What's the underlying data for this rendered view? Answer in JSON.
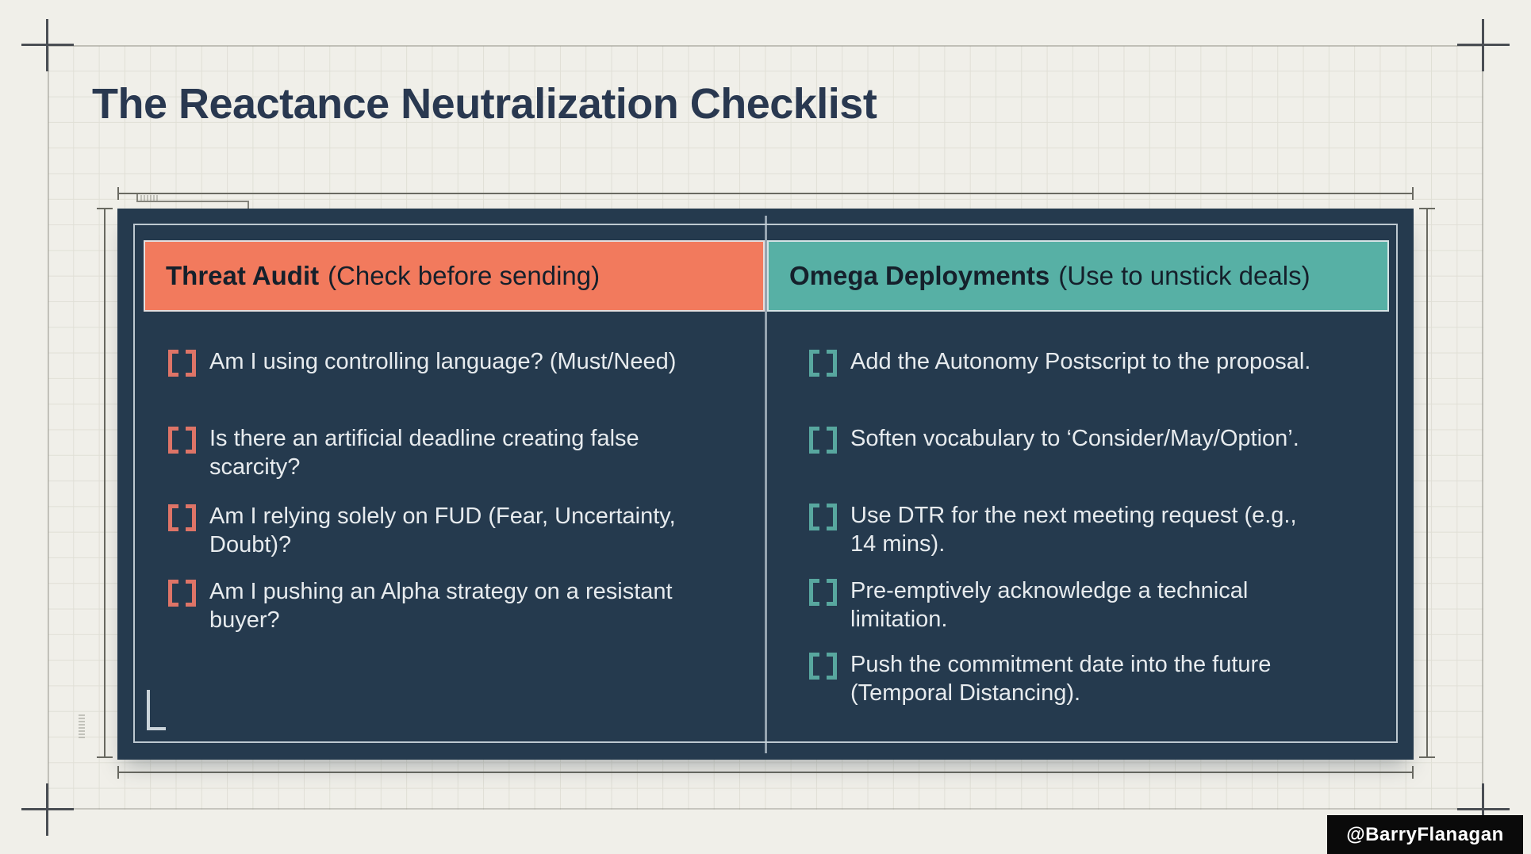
{
  "title": "The Reactance Neutralization Checklist",
  "watermark": "@BarryFlanagan",
  "columns": [
    {
      "header": {
        "bold": "Threat Audit",
        "rest": "(Check before sending)"
      },
      "items": [
        {
          "lines": [
            "Am I using controlling language? (Must/Need)"
          ]
        },
        {
          "lines": [
            "Is there an artificial deadline creating false",
            "scarcity?"
          ]
        },
        {
          "lines": [
            "Am I relying solely on FUD (Fear, Uncertainty,",
            "Doubt)?"
          ]
        },
        {
          "lines": [
            "Am I pushing an Alpha strategy on a resistant",
            "buyer?"
          ]
        }
      ]
    },
    {
      "header": {
        "bold": "Omega Deployments",
        "rest": "(Use to unstick deals)"
      },
      "items": [
        {
          "lines": [
            "Add the Autonomy Postscript to the proposal."
          ]
        },
        {
          "lines": [
            "Soften vocabulary to ‘Consider/May/Option’."
          ]
        },
        {
          "lines": [
            "Use DTR for the next meeting request (e.g.,",
            "14 mins)."
          ]
        },
        {
          "lines": [
            "Pre-emptively acknowledge a technical",
            "limitation."
          ]
        },
        {
          "lines": [
            "Push the commitment date into the future",
            "(Temporal Distancing)."
          ]
        }
      ]
    }
  ],
  "colors": {
    "pageBg": "#F0EFE9",
    "grid": "#DEDDD3",
    "panel": "#253A4E",
    "salmon": "#F27A5D",
    "teal": "#57B0A5",
    "salmonBracket": "#DE7467",
    "tealBracket": "#58A79F",
    "headerText": "#15202B",
    "itemText": "#E7EBEE",
    "titleText": "#293850",
    "badgeBg": "#0A0A0A",
    "badgeText": "#FFFFFF",
    "frameLine": "#4A4E54",
    "dimLine": "#6A6A62"
  }
}
